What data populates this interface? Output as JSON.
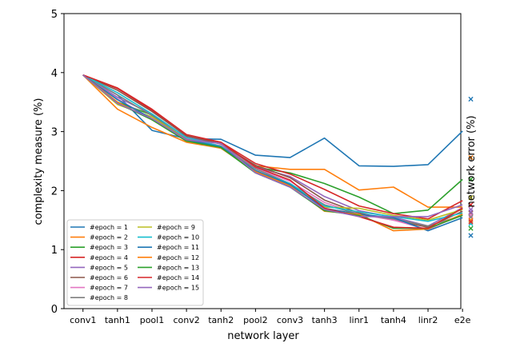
{
  "chart_data": {
    "type": "line",
    "title": "",
    "xlabel": "network layer",
    "ylabel": "complexity measure (%)",
    "y2label": "network error (%)",
    "ylim": [
      0,
      5
    ],
    "yticks": [
      0,
      1,
      2,
      3,
      4,
      5
    ],
    "categories": [
      "conv1",
      "tanh1",
      "pool1",
      "conv2",
      "tanh2",
      "pool2",
      "conv3",
      "tanh3",
      "linr1",
      "tanh4",
      "linr2",
      "e2e"
    ],
    "colors": [
      "#1f77b4",
      "#ff7f0e",
      "#2ca02c",
      "#d62728",
      "#9467bd",
      "#8c564b",
      "#e377c2",
      "#7f7f7f",
      "#bcbd22",
      "#17becf",
      "#1f77b4",
      "#ff7f0e",
      "#2ca02c",
      "#d62728",
      "#9467bd"
    ],
    "series": [
      {
        "name": "#epoch = 1",
        "values": [
          3.96,
          3.62,
          3.02,
          2.88,
          2.87,
          2.6,
          2.56,
          2.89,
          2.42,
          2.41,
          2.44,
          3.01
        ],
        "e2e": 3.55
      },
      {
        "name": "#epoch = 2",
        "values": [
          3.96,
          3.38,
          3.07,
          2.82,
          2.72,
          2.42,
          2.36,
          2.36,
          2.01,
          2.06,
          1.72,
          1.72
        ],
        "e2e": 2.56
      },
      {
        "name": "#epoch = 3",
        "values": [
          3.96,
          3.5,
          3.28,
          2.86,
          2.76,
          2.4,
          2.3,
          2.12,
          1.89,
          1.61,
          1.67,
          2.19
        ],
        "e2e": 2.19
      },
      {
        "name": "#epoch = 4",
        "values": [
          3.96,
          3.73,
          3.36,
          2.92,
          2.82,
          2.46,
          2.28,
          2.02,
          1.74,
          1.61,
          1.52,
          1.83
        ],
        "e2e": 1.76
      },
      {
        "name": "#epoch = 5",
        "values": [
          3.96,
          3.58,
          3.3,
          2.9,
          2.8,
          2.4,
          2.24,
          1.9,
          1.66,
          1.55,
          1.4,
          1.71
        ],
        "e2e": 1.68
      },
      {
        "name": "#epoch = 6",
        "values": [
          3.96,
          3.7,
          3.34,
          2.93,
          2.79,
          2.43,
          2.22,
          1.84,
          1.62,
          1.5,
          1.38,
          1.65
        ],
        "e2e": 1.62
      },
      {
        "name": "#epoch = 7",
        "values": [
          3.96,
          3.55,
          3.22,
          2.88,
          2.76,
          2.38,
          2.16,
          1.8,
          1.6,
          1.5,
          1.34,
          1.6
        ],
        "e2e": 1.58
      },
      {
        "name": "#epoch = 8",
        "values": [
          3.96,
          3.62,
          3.27,
          2.87,
          2.75,
          2.37,
          2.12,
          1.76,
          1.6,
          1.52,
          1.4,
          1.58
        ],
        "e2e": 1.55
      },
      {
        "name": "#epoch = 9",
        "values": [
          3.96,
          3.46,
          3.25,
          2.86,
          2.72,
          2.33,
          2.1,
          1.72,
          1.7,
          1.58,
          1.5,
          1.68
        ],
        "e2e": 1.88
      },
      {
        "name": "#epoch = 10",
        "values": [
          3.96,
          3.66,
          3.3,
          2.9,
          2.75,
          2.33,
          2.12,
          1.74,
          1.64,
          1.56,
          1.48,
          1.62
        ],
        "e2e": 1.44
      },
      {
        "name": "#epoch = 11",
        "values": [
          3.96,
          3.54,
          3.22,
          2.86,
          2.74,
          2.34,
          2.1,
          1.7,
          1.6,
          1.54,
          1.32,
          1.54
        ],
        "e2e": 1.24
      },
      {
        "name": "#epoch = 12",
        "values": [
          3.96,
          3.5,
          3.2,
          2.84,
          2.72,
          2.32,
          2.08,
          1.65,
          1.6,
          1.32,
          1.35,
          1.6
        ],
        "e2e": 1.5
      },
      {
        "name": "#epoch = 13",
        "values": [
          3.96,
          3.48,
          3.2,
          2.84,
          2.73,
          2.3,
          2.06,
          1.66,
          1.58,
          1.36,
          1.36,
          1.58
        ],
        "e2e": 1.36
      },
      {
        "name": "#epoch = 14",
        "values": [
          3.96,
          3.74,
          3.38,
          2.95,
          2.82,
          2.4,
          2.18,
          1.7,
          1.56,
          1.38,
          1.36,
          1.7
        ],
        "e2e": 1.47
      },
      {
        "name": "#epoch = 15",
        "values": [
          3.96,
          3.48,
          3.22,
          2.86,
          2.8,
          2.3,
          2.06,
          1.68,
          1.56,
          1.56,
          1.56,
          1.76
        ],
        "e2e": 1.64
      }
    ],
    "legend_position": "lower-left",
    "legend_columns": 2,
    "grid": false
  }
}
